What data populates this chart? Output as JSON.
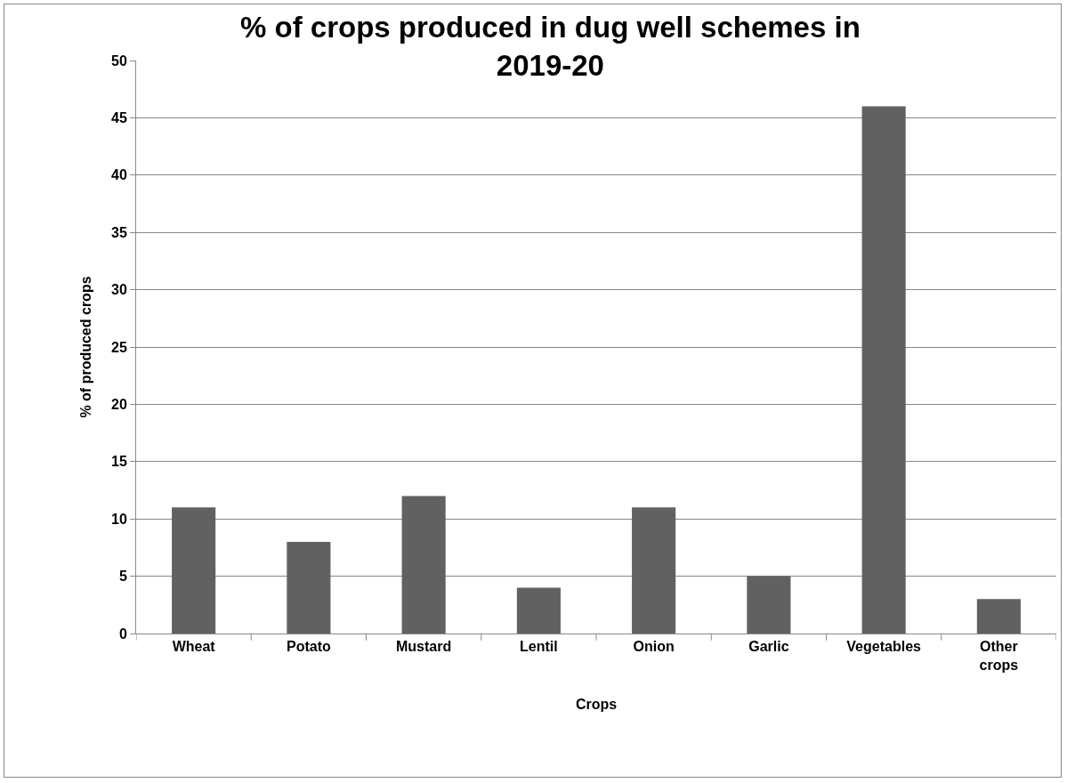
{
  "chart_data": {
    "type": "bar",
    "title": "% of crops produced in dug well schemes in 2019-20",
    "xlabel": "Crops",
    "ylabel": "% of produced crops",
    "categories": [
      "Wheat",
      "Potato",
      "Mustard",
      "Lentil",
      "Onion",
      "Garlic",
      "Vegetables",
      "Other crops"
    ],
    "values": [
      11,
      8,
      12,
      4,
      11,
      5,
      46,
      3
    ],
    "color": "#616161",
    "ylim": [
      0,
      50
    ],
    "yticks": [
      0,
      5,
      10,
      15,
      20,
      25,
      30,
      35,
      40,
      45,
      50
    ],
    "grid": "y"
  }
}
